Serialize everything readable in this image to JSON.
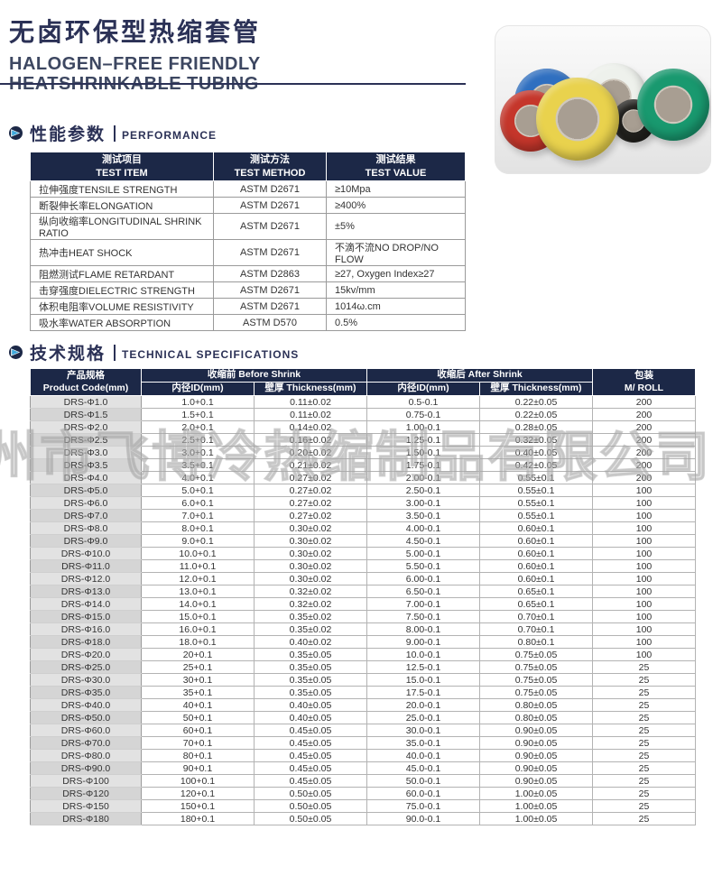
{
  "header": {
    "title_cn": "无卤环保型热缩套管",
    "title_en_line1": "HALOGEN–FREE FRIENDLY",
    "title_en_line2": "HEATSHRINKABLE TUBING"
  },
  "colors": {
    "navy_header": "#1c2847",
    "title_navy": "#2b3156",
    "accent_cyan": "#3fa9dc",
    "code_col_gray": "#e2e2e2",
    "code_col_gray_alt": "#d5d5d5"
  },
  "watermark_text": "州市飞博冷热缩制品有限公司",
  "performance": {
    "section_title_cn": "性能参数",
    "section_title_en": "PERFORMANCE",
    "headers": [
      {
        "cn": "测试项目",
        "en": "TEST ITEM"
      },
      {
        "cn": "测试方法",
        "en": "TEST METHOD"
      },
      {
        "cn": "测试结果",
        "en": "TEST VALUE"
      }
    ],
    "rows": [
      [
        "拉伸强度TENSILE STRENGTH",
        "ASTM D2671",
        "≥10Mpa"
      ],
      [
        "断裂伸长率ELONGATION",
        "ASTM D2671",
        "≥400%"
      ],
      [
        "纵向收缩率LONGITUDINAL SHRINK RATIO",
        "ASTM D2671",
        "±5%"
      ],
      [
        "热冲击HEAT SHOCK",
        "ASTM D2671",
        "不滴不流NO DROP/NO FLOW"
      ],
      [
        "阻燃测试FLAME RETARDANT",
        "ASTM D2863",
        "≥27, Oxygen Index≥27"
      ],
      [
        "击穿强度DIELECTRIC STRENGTH",
        "ASTM D2671",
        "15kv/mm"
      ],
      [
        "体积电阻率VOLUME RESISTIVITY",
        "ASTM D2671",
        "1014ω.cm"
      ],
      [
        "吸水率WATER ABSORPTION",
        "ASTM D570",
        "0.5%"
      ]
    ]
  },
  "specs": {
    "section_title_cn": "技术规格",
    "section_title_en": "TECHNICAL SPECIFICATIONS",
    "header": {
      "product_code_cn": "产品规格",
      "product_code_en": "Product Code(mm)",
      "before_shrink": "收缩前 Before Shrink",
      "after_shrink": "收缩后 After Shrink",
      "id_label": "内径ID(mm)",
      "thickness_label": "壁厚 Thickness(mm)",
      "package_cn": "包装",
      "package_en": "M/ ROLL"
    },
    "rows": [
      [
        "DRS-Φ1.0",
        "1.0+0.1",
        "0.11±0.02",
        "0.5-0.1",
        "0.22±0.05",
        "200"
      ],
      [
        "DRS-Φ1.5",
        "1.5+0.1",
        "0.11±0.02",
        "0.75-0.1",
        "0.22±0.05",
        "200"
      ],
      [
        "DRS-Φ2.0",
        "2.0+0.1",
        "0.14±0.02",
        "1.00-0.1",
        "0.28±0.05",
        "200"
      ],
      [
        "DRS-Φ2.5",
        "2.5+0.1",
        "0.16±0.02",
        "1.25-0.1",
        "0.32±0.05",
        "200"
      ],
      [
        "DRS-Φ3.0",
        "3.0+0.1",
        "0.20±0.02",
        "1.50-0.1",
        "0.40±0.05",
        "200"
      ],
      [
        "DRS-Φ3.5",
        "3.5+0.1",
        "0.21±0.02",
        "1.75-0.1",
        "0.42±0.05",
        "200"
      ],
      [
        "DRS-Φ4.0",
        "4.0+0.1",
        "0.27±0.02",
        "2.00-0.1",
        "0.55±0.1",
        "200"
      ],
      [
        "DRS-Φ5.0",
        "5.0+0.1",
        "0.27±0.02",
        "2.50-0.1",
        "0.55±0.1",
        "100"
      ],
      [
        "DRS-Φ6.0",
        "6.0+0.1",
        "0.27±0.02",
        "3.00-0.1",
        "0.55±0.1",
        "100"
      ],
      [
        "DRS-Φ7.0",
        "7.0+0.1",
        "0.27±0.02",
        "3.50-0.1",
        "0.55±0.1",
        "100"
      ],
      [
        "DRS-Φ8.0",
        "8.0+0.1",
        "0.30±0.02",
        "4.00-0.1",
        "0.60±0.1",
        "100"
      ],
      [
        "DRS-Φ9.0",
        "9.0+0.1",
        "0.30±0.02",
        "4.50-0.1",
        "0.60±0.1",
        "100"
      ],
      [
        "DRS-Φ10.0",
        "10.0+0.1",
        "0.30±0.02",
        "5.00-0.1",
        "0.60±0.1",
        "100"
      ],
      [
        "DRS-Φ11.0",
        "11.0+0.1",
        "0.30±0.02",
        "5.50-0.1",
        "0.60±0.1",
        "100"
      ],
      [
        "DRS-Φ12.0",
        "12.0+0.1",
        "0.30±0.02",
        "6.00-0.1",
        "0.60±0.1",
        "100"
      ],
      [
        "DRS-Φ13.0",
        "13.0+0.1",
        "0.32±0.02",
        "6.50-0.1",
        "0.65±0.1",
        "100"
      ],
      [
        "DRS-Φ14.0",
        "14.0+0.1",
        "0.32±0.02",
        "7.00-0.1",
        "0.65±0.1",
        "100"
      ],
      [
        "DRS-Φ15.0",
        "15.0+0.1",
        "0.35±0.02",
        "7.50-0.1",
        "0.70±0.1",
        "100"
      ],
      [
        "DRS-Φ16.0",
        "16.0+0.1",
        "0.35±0.02",
        "8.00-0.1",
        "0.70±0.1",
        "100"
      ],
      [
        "DRS-Φ18.0",
        "18.0+0.1",
        "0.40±0.02",
        "9.00-0.1",
        "0.80±0.1",
        "100"
      ],
      [
        "DRS-Φ20.0",
        "20+0.1",
        "0.35±0.05",
        "10.0-0.1",
        "0.75±0.05",
        "100"
      ],
      [
        "DRS-Φ25.0",
        "25+0.1",
        "0.35±0.05",
        "12.5-0.1",
        "0.75±0.05",
        "25"
      ],
      [
        "DRS-Φ30.0",
        "30+0.1",
        "0.35±0.05",
        "15.0-0.1",
        "0.75±0.05",
        "25"
      ],
      [
        "DRS-Φ35.0",
        "35+0.1",
        "0.35±0.05",
        "17.5-0.1",
        "0.75±0.05",
        "25"
      ],
      [
        "DRS-Φ40.0",
        "40+0.1",
        "0.40±0.05",
        "20.0-0.1",
        "0.80±0.05",
        "25"
      ],
      [
        "DRS-Φ50.0",
        "50+0.1",
        "0.40±0.05",
        "25.0-0.1",
        "0.80±0.05",
        "25"
      ],
      [
        "DRS-Φ60.0",
        "60+0.1",
        "0.45±0.05",
        "30.0-0.1",
        "0.90±0.05",
        "25"
      ],
      [
        "DRS-Φ70.0",
        "70+0.1",
        "0.45±0.05",
        "35.0-0.1",
        "0.90±0.05",
        "25"
      ],
      [
        "DRS-Φ80.0",
        "80+0.1",
        "0.45±0.05",
        "40.0-0.1",
        "0.90±0.05",
        "25"
      ],
      [
        "DRS-Φ90.0",
        "90+0.1",
        "0.45±0.05",
        "45.0-0.1",
        "0.90±0.05",
        "25"
      ],
      [
        "DRS-Φ100",
        "100+0.1",
        "0.45±0.05",
        "50.0-0.1",
        "0.90±0.05",
        "25"
      ],
      [
        "DRS-Φ120",
        "120+0.1",
        "0.50±0.05",
        "60.0-0.1",
        "1.00±0.05",
        "25"
      ],
      [
        "DRS-Φ150",
        "150+0.1",
        "0.50±0.05",
        "75.0-0.1",
        "1.00±0.05",
        "25"
      ],
      [
        "DRS-Φ180",
        "180+0.1",
        "0.50±0.05",
        "90.0-0.1",
        "1.00±0.05",
        "25"
      ]
    ]
  },
  "product_image": {
    "description": "colorful heat-shrinkable tubing rolls",
    "rolls": [
      {
        "name": "blue-roll",
        "color": "#2f6fc0"
      },
      {
        "name": "white-roll",
        "color": "#eef1ec"
      },
      {
        "name": "red-roll",
        "color": "#c5362b"
      },
      {
        "name": "black-roll",
        "color": "#23221f"
      },
      {
        "name": "yellow-roll",
        "color": "#e9d24d"
      },
      {
        "name": "green-roll",
        "color": "#19996f"
      }
    ]
  }
}
